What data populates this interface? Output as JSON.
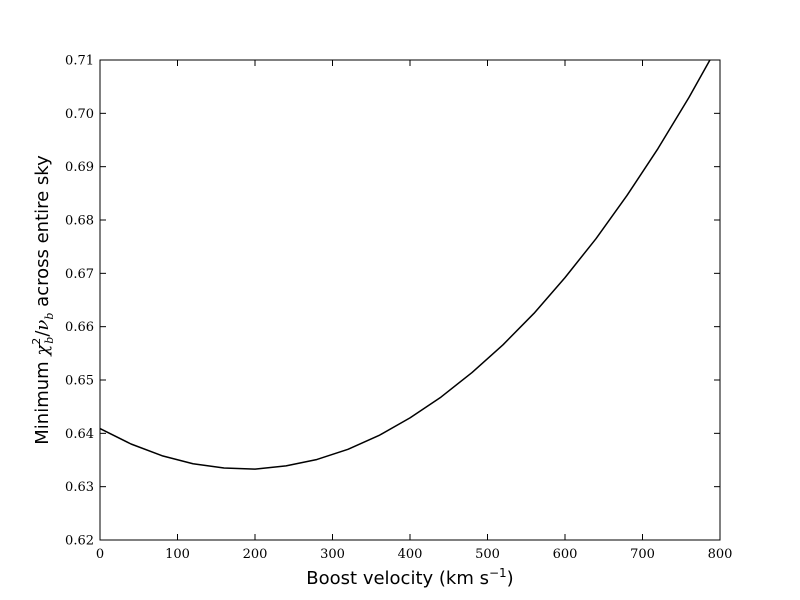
{
  "chart_data": {
    "type": "line",
    "xlabel": {
      "text": "Boost velocity (km s",
      "sup": "−1",
      "close": ")"
    },
    "ylabel": {
      "prefix": "Minimum ",
      "chi": "χ",
      "chi_sup": "2",
      "chi_sub": "b",
      "slash": "/",
      "nu": "ν",
      "nu_sub": "b",
      "suffix": " across entire sky"
    },
    "xlim": [
      0,
      800
    ],
    "ylim": [
      0.62,
      0.71
    ],
    "x_ticks": [
      0,
      100,
      200,
      300,
      400,
      500,
      600,
      700,
      800
    ],
    "y_ticks": [
      0.62,
      0.63,
      0.64,
      0.65,
      0.66,
      0.67,
      0.68,
      0.69,
      0.7,
      0.71
    ],
    "x_tick_labels": [
      "0",
      "100",
      "200",
      "300",
      "400",
      "500",
      "600",
      "700",
      "800"
    ],
    "y_tick_labels": [
      "0.62",
      "0.63",
      "0.64",
      "0.65",
      "0.66",
      "0.67",
      "0.68",
      "0.69",
      "0.70",
      "0.71"
    ],
    "grid": false,
    "series": [
      {
        "color": "#000000",
        "x": [
          0,
          40,
          80,
          120,
          160,
          200,
          240,
          280,
          320,
          360,
          400,
          440,
          480,
          520,
          560,
          600,
          640,
          680,
          720,
          760,
          787
        ],
        "y": [
          0.6409,
          0.638,
          0.6358,
          0.6343,
          0.6335,
          0.6333,
          0.6339,
          0.6351,
          0.637,
          0.6396,
          0.6429,
          0.6468,
          0.6514,
          0.6566,
          0.6625,
          0.6692,
          0.6765,
          0.6846,
          0.6934,
          0.703,
          0.71
        ]
      }
    ]
  }
}
